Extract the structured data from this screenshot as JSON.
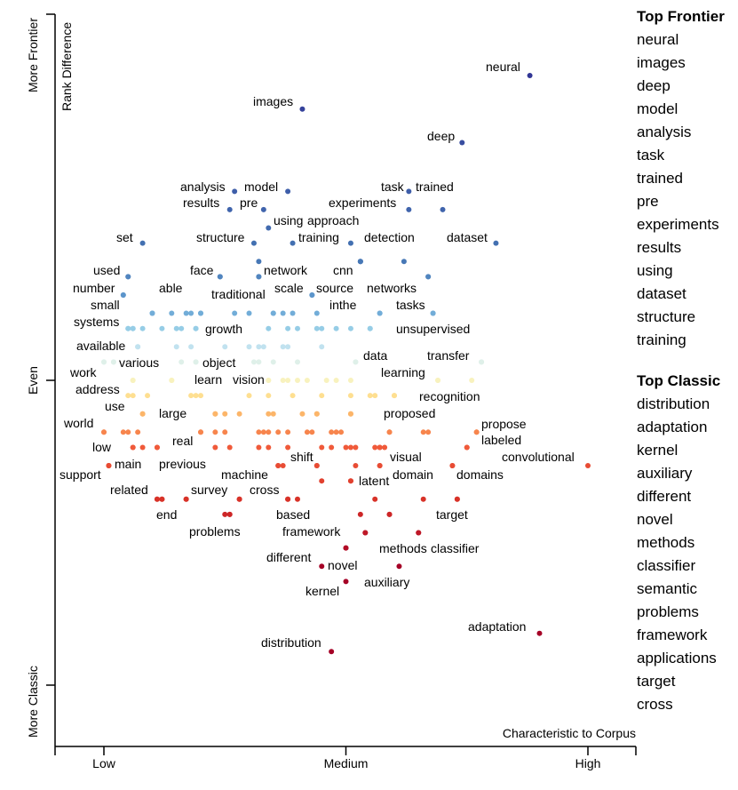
{
  "chart_data": {
    "type": "scatter",
    "title": "",
    "xlabel": "Characteristic to Corpus",
    "ylabel": "Rank Difference",
    "x_ticks": [
      "Low",
      "Medium",
      "High"
    ],
    "x_tick_values": [
      0,
      0.5,
      1
    ],
    "y_ticks": [
      "More Frontier",
      "Even",
      "More Classic"
    ],
    "y_tick_values": [
      1,
      0,
      -1
    ],
    "xlim": [
      -0.1,
      1.1
    ],
    "ylim": [
      -1.2,
      1.2
    ],
    "color_scale": "RdYlBu by rank difference",
    "labeled_points": [
      {
        "term": "neural",
        "x": 0.88,
        "y": 1.0
      },
      {
        "term": "images",
        "x": 0.41,
        "y": 0.89
      },
      {
        "term": "deep",
        "x": 0.74,
        "y": 0.78
      },
      {
        "term": "analysis",
        "x": 0.27,
        "y": 0.62
      },
      {
        "term": "model",
        "x": 0.38,
        "y": 0.62
      },
      {
        "term": "task",
        "x": 0.63,
        "y": 0.62
      },
      {
        "term": "trained",
        "x": 0.7,
        "y": 0.56
      },
      {
        "term": "results",
        "x": 0.26,
        "y": 0.56
      },
      {
        "term": "pre",
        "x": 0.33,
        "y": 0.56
      },
      {
        "term": "experiments",
        "x": 0.63,
        "y": 0.56
      },
      {
        "term": "using",
        "x": 0.34,
        "y": 0.5
      },
      {
        "term": "approach",
        "x": 0.51,
        "y": 0.45
      },
      {
        "term": "training",
        "x": 0.39,
        "y": 0.45
      },
      {
        "term": "set",
        "x": 0.08,
        "y": 0.45
      },
      {
        "term": "structure",
        "x": 0.31,
        "y": 0.45
      },
      {
        "term": "dataset",
        "x": 0.81,
        "y": 0.45
      },
      {
        "term": "detection",
        "x": 0.53,
        "y": 0.39
      },
      {
        "term": "used",
        "x": 0.05,
        "y": 0.34
      },
      {
        "term": "face",
        "x": 0.24,
        "y": 0.34
      },
      {
        "term": "network",
        "x": 0.32,
        "y": 0.34
      },
      {
        "term": "cnn",
        "x": 0.53,
        "y": 0.39
      },
      {
        "term": "number",
        "x": 0.04,
        "y": 0.28
      },
      {
        "term": "able",
        "x": 0.1,
        "y": 0.22
      },
      {
        "term": "traditional",
        "x": 0.2,
        "y": 0.22
      },
      {
        "term": "scale",
        "x": 0.35,
        "y": 0.22
      },
      {
        "term": "source",
        "x": 0.43,
        "y": 0.28
      },
      {
        "term": "networks",
        "x": 0.67,
        "y": 0.34
      },
      {
        "term": "small",
        "x": 0.05,
        "y": 0.17
      },
      {
        "term": "inthe",
        "x": 0.57,
        "y": 0.22
      },
      {
        "term": "tasks",
        "x": 0.68,
        "y": 0.22
      },
      {
        "term": "systems",
        "x": 0.06,
        "y": 0.17
      },
      {
        "term": "growth",
        "x": 0.19,
        "y": 0.17
      },
      {
        "term": "unsupervised",
        "x": 0.55,
        "y": 0.17
      },
      {
        "term": "available",
        "x": 0.07,
        "y": 0.11
      },
      {
        "term": "various",
        "x": 0.02,
        "y": 0.06
      },
      {
        "term": "object",
        "x": 0.19,
        "y": 0.06
      },
      {
        "term": "data",
        "x": 0.52,
        "y": 0.06
      },
      {
        "term": "transfer",
        "x": 0.78,
        "y": 0.06
      },
      {
        "term": "work",
        "x": 0.0,
        "y": 0.06
      },
      {
        "term": "learning",
        "x": 0.69,
        "y": 0.0
      },
      {
        "term": "learn",
        "x": 0.14,
        "y": 0.0
      },
      {
        "term": "vision",
        "x": 0.34,
        "y": 0.0
      },
      {
        "term": "address",
        "x": 0.06,
        "y": 0.0
      },
      {
        "term": "recognition",
        "x": 0.6,
        "y": -0.05
      },
      {
        "term": "use",
        "x": 0.08,
        "y": -0.11
      },
      {
        "term": "large",
        "x": 0.23,
        "y": -0.11
      },
      {
        "term": "proposed",
        "x": 0.51,
        "y": -0.11
      },
      {
        "term": "world",
        "x": 0.0,
        "y": -0.17
      },
      {
        "term": "propose",
        "x": 0.77,
        "y": -0.17
      },
      {
        "term": "real",
        "x": 0.2,
        "y": -0.17
      },
      {
        "term": "low",
        "x": 0.06,
        "y": -0.22
      },
      {
        "term": "labeled",
        "x": 0.75,
        "y": -0.22
      },
      {
        "term": "shift",
        "x": 0.44,
        "y": -0.28
      },
      {
        "term": "visual",
        "x": 0.57,
        "y": -0.28
      },
      {
        "term": "main",
        "x": 0.01,
        "y": -0.28
      },
      {
        "term": "previous",
        "x": 0.11,
        "y": -0.22
      },
      {
        "term": "convolutional",
        "x": 1.0,
        "y": -0.28
      },
      {
        "term": "support",
        "x": 0.01,
        "y": -0.28
      },
      {
        "term": "machine",
        "x": 0.36,
        "y": -0.28
      },
      {
        "term": "domain",
        "x": 0.57,
        "y": -0.22
      },
      {
        "term": "domains",
        "x": 0.72,
        "y": -0.28
      },
      {
        "term": "latent",
        "x": 0.51,
        "y": -0.33
      },
      {
        "term": "related",
        "x": 0.12,
        "y": -0.39
      },
      {
        "term": "survey",
        "x": 0.17,
        "y": -0.39
      },
      {
        "term": "cross",
        "x": 0.28,
        "y": -0.39
      },
      {
        "term": "end",
        "x": 0.11,
        "y": -0.39
      },
      {
        "term": "based",
        "x": 0.38,
        "y": -0.39
      },
      {
        "term": "target",
        "x": 0.73,
        "y": -0.39
      },
      {
        "term": "problems",
        "x": 0.26,
        "y": -0.44
      },
      {
        "term": "framework",
        "x": 0.54,
        "y": -0.5
      },
      {
        "term": "methods",
        "x": 0.59,
        "y": -0.44
      },
      {
        "term": "classifier",
        "x": 0.65,
        "y": -0.5
      },
      {
        "term": "different",
        "x": 0.5,
        "y": -0.55
      },
      {
        "term": "novel",
        "x": 0.45,
        "y": -0.61
      },
      {
        "term": "auxiliary",
        "x": 0.61,
        "y": -0.61
      },
      {
        "term": "kernel",
        "x": 0.5,
        "y": -0.66
      },
      {
        "term": "adaptation",
        "x": 0.9,
        "y": -0.83
      },
      {
        "term": "distribution",
        "x": 0.47,
        "y": -0.89
      }
    ],
    "other_points": {
      "0.39": [
        0.32,
        0.53,
        0.62
      ],
      "0.34": [
        0.05,
        0.24,
        0.32,
        0.67
      ],
      "0.28": [
        0.04,
        0.43
      ],
      "0.22": [
        0.1,
        0.14,
        0.17,
        0.18,
        0.2,
        0.27,
        0.3,
        0.35,
        0.37,
        0.39,
        0.44,
        0.57,
        0.68
      ],
      "0.17": [
        0.05,
        0.06,
        0.08,
        0.12,
        0.15,
        0.16,
        0.19,
        0.34,
        0.38,
        0.4,
        0.44,
        0.45,
        0.48,
        0.51,
        0.55
      ],
      "0.11": [
        0.07,
        0.15,
        0.18,
        0.25,
        0.3,
        0.32,
        0.33,
        0.37,
        0.38,
        0.45
      ],
      "0.06": [
        0.0,
        0.02,
        0.16,
        0.19,
        0.31,
        0.32,
        0.35,
        0.4,
        0.52,
        0.78
      ],
      "0.00": [
        0.06,
        0.14,
        0.34,
        0.37,
        0.38,
        0.4,
        0.42,
        0.46,
        0.48,
        0.51,
        0.69,
        0.76
      ],
      "-0.05": [
        0.05,
        0.06,
        0.09,
        0.18,
        0.19,
        0.2,
        0.3,
        0.34,
        0.39,
        0.45,
        0.51,
        0.55,
        0.56,
        0.6
      ],
      "-0.11": [
        0.08,
        0.23,
        0.25,
        0.28,
        0.34,
        0.35,
        0.41,
        0.44,
        0.44,
        0.51
      ],
      "-0.17": [
        0.0,
        0.04,
        0.05,
        0.07,
        0.2,
        0.23,
        0.25,
        0.32,
        0.33,
        0.34,
        0.36,
        0.38,
        0.42,
        0.43,
        0.47,
        0.48,
        0.49,
        0.59,
        0.59,
        0.66,
        0.67,
        0.77
      ],
      "-0.22": [
        0.06,
        0.08,
        0.11,
        0.23,
        0.26,
        0.32,
        0.34,
        0.38,
        0.45,
        0.47,
        0.5,
        0.51,
        0.52,
        0.56,
        0.57,
        0.58,
        0.75
      ],
      "-0.28": [
        0.01,
        0.36,
        0.37,
        0.44,
        0.52,
        0.57,
        0.72
      ],
      "-0.33": [
        0.45,
        0.51
      ],
      "-0.39": [
        0.11,
        0.12,
        0.17,
        0.28,
        0.38,
        0.4,
        0.56,
        0.66,
        0.73
      ],
      "-0.44": [
        0.25,
        0.26,
        0.53,
        0.59
      ],
      "-0.50": [
        0.54,
        0.65
      ],
      "-0.55": [
        0.5
      ]
    }
  },
  "top_frontier": {
    "title": "Top Frontier",
    "terms": [
      "neural",
      "images",
      "deep",
      "model",
      "analysis",
      "task",
      "trained",
      "pre",
      "experiments",
      "results",
      "using",
      "dataset",
      "structure",
      "training"
    ]
  },
  "top_classic": {
    "title": "Top Classic",
    "terms": [
      "distribution",
      "adaptation",
      "kernel",
      "auxiliary",
      "different",
      "novel",
      "methods",
      "classifier",
      "semantic",
      "problems",
      "framework",
      "applications",
      "target",
      "cross"
    ]
  }
}
